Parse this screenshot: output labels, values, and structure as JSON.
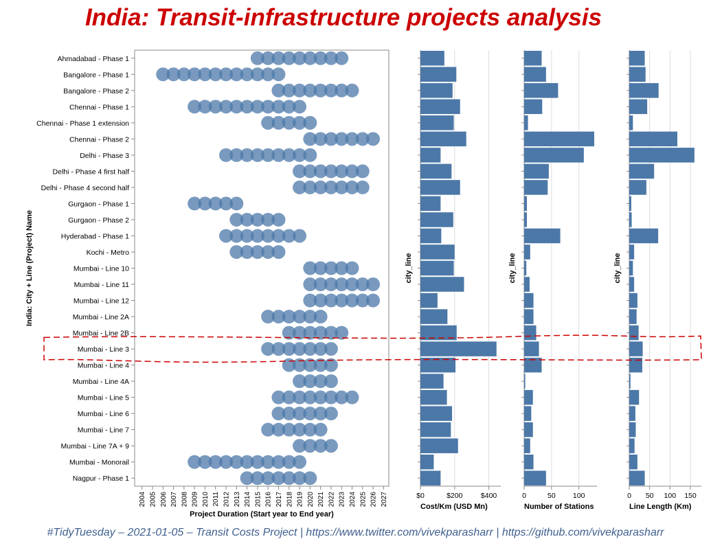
{
  "title": "India: Transit-infrastructure projects analysis",
  "footer": "#TidyTuesday – 2021-01-05 – Transit Costs Project  |  https://www.twitter.com/vivekparasharr  |  https://github.com/vivekparasharr",
  "colors": {
    "mark": "#4c78a8",
    "title": "#cc0000",
    "highlight": "#cc0000",
    "axis": "#888888",
    "grid": "#dddddd"
  },
  "chart_data": {
    "type": "bar",
    "y_title": "India: City + Line (Project) Name",
    "projects": [
      {
        "name": "Ahmadabad - Phase 1",
        "start": 2015,
        "end": 2023,
        "cost_km": 140,
        "stations": 32,
        "length": 38
      },
      {
        "name": "Bangalore - Phase 1",
        "start": 2006,
        "end": 2017,
        "cost_km": 210,
        "stations": 40,
        "length": 40
      },
      {
        "name": "Bangalore - Phase 2",
        "start": 2017,
        "end": 2024,
        "cost_km": 188,
        "stations": 62,
        "length": 72
      },
      {
        "name": "Chennai - Phase 1",
        "start": 2009,
        "end": 2019,
        "cost_km": 232,
        "stations": 33,
        "length": 44
      },
      {
        "name": "Chennai - Phase 1 extension",
        "start": 2016,
        "end": 2020,
        "cost_km": 195,
        "stations": 7,
        "length": 9
      },
      {
        "name": "Chennai - Phase 2",
        "start": 2020,
        "end": 2026,
        "cost_km": 268,
        "stations": 128,
        "length": 118
      },
      {
        "name": "Delhi - Phase 3",
        "start": 2012,
        "end": 2020,
        "cost_km": 118,
        "stations": 109,
        "length": 160
      },
      {
        "name": "Delhi - Phase 4 first half",
        "start": 2019,
        "end": 2025,
        "cost_km": 182,
        "stations": 45,
        "length": 61
      },
      {
        "name": "Delhi - Phase 4 second half",
        "start": 2019,
        "end": 2025,
        "cost_km": 232,
        "stations": 43,
        "length": 42
      },
      {
        "name": "Gurgaon - Phase 1",
        "start": 2009,
        "end": 2013,
        "cost_km": 118,
        "stations": 5,
        "length": 5
      },
      {
        "name": "Gurgaon - Phase 2",
        "start": 2013,
        "end": 2017,
        "cost_km": 192,
        "stations": 5,
        "length": 6
      },
      {
        "name": "Hyderabad - Phase 1",
        "start": 2012,
        "end": 2019,
        "cost_km": 122,
        "stations": 66,
        "length": 71
      },
      {
        "name": "Kochi - Metro",
        "start": 2013,
        "end": 2017,
        "cost_km": 200,
        "stations": 11,
        "length": 12
      },
      {
        "name": "Mumbai - Line 10",
        "start": 2020,
        "end": 2024,
        "cost_km": 195,
        "stations": 4,
        "length": 9
      },
      {
        "name": "Mumbai - Line 11",
        "start": 2020,
        "end": 2026,
        "cost_km": 255,
        "stations": 10,
        "length": 12
      },
      {
        "name": "Mumbai - Line 12",
        "start": 2020,
        "end": 2026,
        "cost_km": 100,
        "stations": 17,
        "length": 20
      },
      {
        "name": "Mumbai - Line 2A",
        "start": 2016,
        "end": 2021,
        "cost_km": 158,
        "stations": 17,
        "length": 18
      },
      {
        "name": "Mumbai - Line 2B",
        "start": 2018,
        "end": 2023,
        "cost_km": 212,
        "stations": 22,
        "length": 23
      },
      {
        "name": "Mumbai - Line 3",
        "start": 2016,
        "end": 2022,
        "cost_km": 445,
        "stations": 27,
        "length": 33
      },
      {
        "name": "Mumbai - Line 4",
        "start": 2018,
        "end": 2022,
        "cost_km": 205,
        "stations": 32,
        "length": 32
      },
      {
        "name": "Mumbai - Line 4A",
        "start": 2019,
        "end": 2022,
        "cost_km": 135,
        "stations": 2,
        "length": 3
      },
      {
        "name": "Mumbai - Line 5",
        "start": 2017,
        "end": 2024,
        "cost_km": 155,
        "stations": 16,
        "length": 24
      },
      {
        "name": "Mumbai - Line 6",
        "start": 2017,
        "end": 2022,
        "cost_km": 185,
        "stations": 13,
        "length": 15
      },
      {
        "name": "Mumbai - Line 7",
        "start": 2016,
        "end": 2021,
        "cost_km": 178,
        "stations": 16,
        "length": 16
      },
      {
        "name": "Mumbai - Line 7A + 9",
        "start": 2019,
        "end": 2022,
        "cost_km": 220,
        "stations": 11,
        "length": 13
      },
      {
        "name": "Mumbai - Monorail",
        "start": 2009,
        "end": 2019,
        "cost_km": 78,
        "stations": 17,
        "length": 20
      },
      {
        "name": "Nagpur - Phase 1",
        "start": 2014,
        "end": 2020,
        "cost_km": 118,
        "stations": 40,
        "length": 38
      }
    ],
    "panels": [
      {
        "id": "duration",
        "type": "scatter",
        "xlabel": "Project Duration (Start year to End year)",
        "xlim": [
          2003.3,
          2027.5
        ],
        "ticks": [
          2004,
          2005,
          2006,
          2007,
          2008,
          2009,
          2010,
          2011,
          2012,
          2013,
          2014,
          2015,
          2016,
          2017,
          2018,
          2019,
          2020,
          2021,
          2022,
          2023,
          2024,
          2025,
          2026,
          2027
        ]
      },
      {
        "id": "cost",
        "type": "bar",
        "field": "cost_km",
        "xlabel": "Cost/Km (USD Mn)",
        "ylabel": "city_line",
        "xlim": [
          0,
          470
        ],
        "ticks": [
          0,
          200,
          400
        ],
        "tick_labels": [
          "$0",
          "$200",
          "$400"
        ]
      },
      {
        "id": "stations",
        "type": "bar",
        "field": "stations",
        "xlabel": "Number of Stations",
        "ylabel": "city_line",
        "xlim": [
          0,
          133
        ],
        "ticks": [
          0,
          50,
          100
        ],
        "tick_labels": [
          "0",
          "50",
          "100"
        ]
      },
      {
        "id": "length",
        "type": "bar",
        "field": "length",
        "xlabel": "Line Length (Km)",
        "ylabel": "city_line",
        "xlim": [
          0,
          177
        ],
        "ticks": [
          0,
          50,
          100,
          150
        ],
        "tick_labels": [
          "0",
          "50",
          "100",
          "150"
        ]
      }
    ],
    "highlight_row": "Mumbai - Line 3"
  }
}
